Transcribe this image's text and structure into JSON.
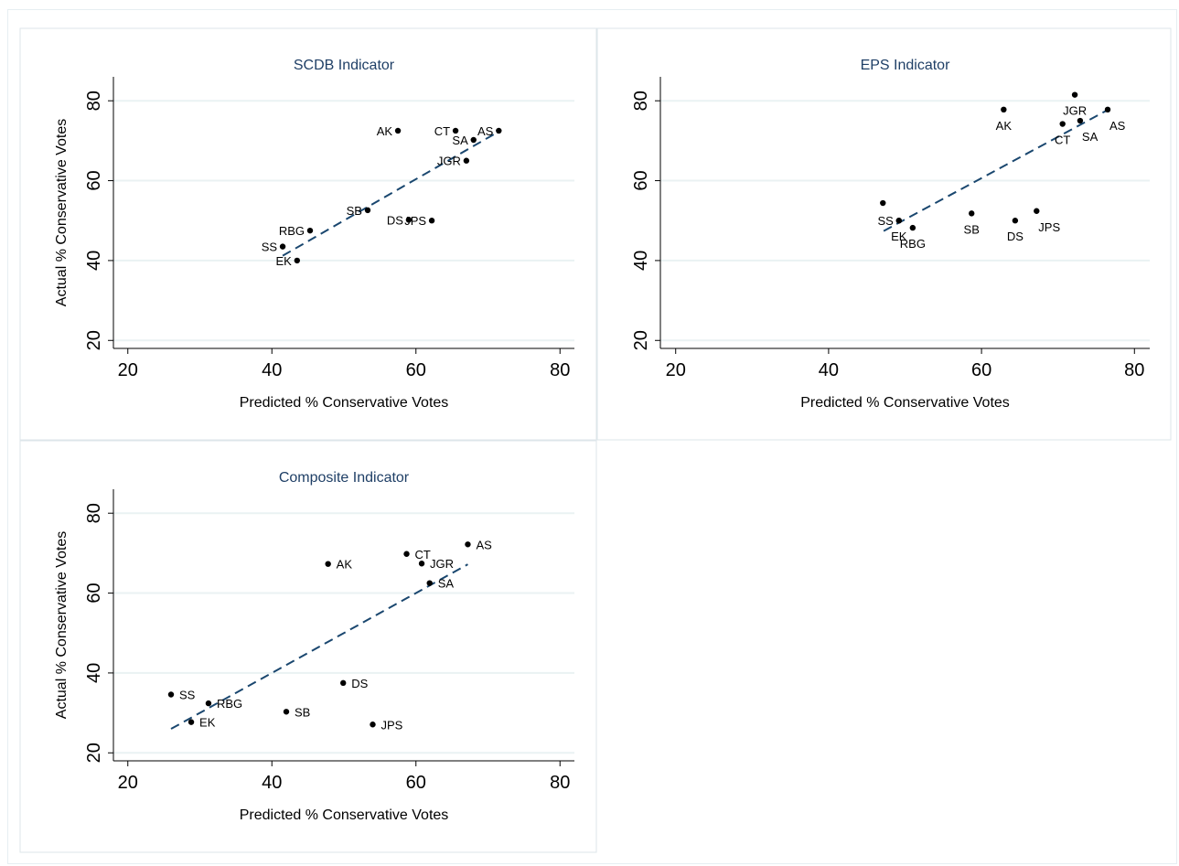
{
  "colors": {
    "background": "#ffffff",
    "panel_border": "#dde6ea",
    "title": "#1f3f66",
    "grid": "#eaf2f3",
    "point": "#000000",
    "fit_line": "#1a476f"
  },
  "chart_data": [
    {
      "type": "scatter",
      "title": "SCDB Indicator",
      "xlabel": "Predicted % Conservative Votes",
      "ylabel": "Actual % Conservative Votes",
      "xlim": [
        18,
        82
      ],
      "ylim": [
        18,
        86
      ],
      "xticks": [
        20,
        40,
        60,
        80
      ],
      "yticks": [
        20,
        40,
        60,
        80
      ],
      "grid": "horizontal",
      "points": [
        {
          "label": "AK",
          "x": 57.5,
          "y": 72.5,
          "pos": "left"
        },
        {
          "label": "CT",
          "x": 65.5,
          "y": 72.5,
          "pos": "left"
        },
        {
          "label": "AS",
          "x": 71.5,
          "y": 72.5,
          "pos": "left"
        },
        {
          "label": "SA",
          "x": 68.0,
          "y": 70.2,
          "pos": "left"
        },
        {
          "label": "JGR",
          "x": 67.0,
          "y": 65.0,
          "pos": "left"
        },
        {
          "label": "SB",
          "x": 53.3,
          "y": 52.6,
          "pos": "left"
        },
        {
          "label": "DS",
          "x": 59.0,
          "y": 50.2,
          "pos": "left"
        },
        {
          "label": "JPS",
          "x": 62.2,
          "y": 50.0,
          "pos": "left"
        },
        {
          "label": "RBG",
          "x": 45.3,
          "y": 47.5,
          "pos": "left"
        },
        {
          "label": "SS",
          "x": 41.5,
          "y": 43.5,
          "pos": "left"
        },
        {
          "label": "EK",
          "x": 43.5,
          "y": 40.0,
          "pos": "left"
        }
      ],
      "fit": {
        "x": [
          41.5,
          71.5
        ],
        "y": [
          41.2,
          72.3
        ]
      }
    },
    {
      "type": "scatter",
      "title": "EPS Indicator",
      "xlabel": "Predicted % Conservative Votes",
      "ylabel": "",
      "xlim": [
        18,
        82
      ],
      "ylim": [
        18,
        86
      ],
      "xticks": [
        20,
        40,
        60,
        80
      ],
      "yticks": [
        20,
        40,
        60,
        80
      ],
      "grid": "horizontal",
      "points": [
        {
          "label": "AK",
          "x": 62.9,
          "y": 77.8,
          "pos": "below"
        },
        {
          "label": "JGR",
          "x": 72.2,
          "y": 81.5,
          "pos": "below"
        },
        {
          "label": "AS",
          "x": 76.5,
          "y": 77.8,
          "pos": "belowright"
        },
        {
          "label": "CT",
          "x": 70.6,
          "y": 74.2,
          "pos": "below"
        },
        {
          "label": "SA",
          "x": 72.9,
          "y": 75.0,
          "pos": "belowright"
        },
        {
          "label": "SS",
          "x": 49.2,
          "y": 50.0,
          "pos": "left"
        },
        {
          "label": "",
          "x": 47.1,
          "y": 54.4,
          "pos": "none"
        },
        {
          "label": "EK",
          "x": 49.2,
          "y": 50.0,
          "pos": "belowfar"
        },
        {
          "label": "RBG",
          "x": 51.0,
          "y": 48.2,
          "pos": "below"
        },
        {
          "label": "SB",
          "x": 58.7,
          "y": 51.8,
          "pos": "below"
        },
        {
          "label": "DS",
          "x": 64.4,
          "y": 50.0,
          "pos": "below"
        },
        {
          "label": "JPS",
          "x": 67.2,
          "y": 52.4,
          "pos": "belowright"
        }
      ],
      "fit": {
        "x": [
          47.2,
          76.6
        ],
        "y": [
          47.4,
          77.8
        ]
      }
    },
    {
      "type": "scatter",
      "title": "Composite Indicator",
      "xlabel": "Predicted % Conservative Votes",
      "ylabel": "Actual % Conservative Votes",
      "xlim": [
        18,
        82
      ],
      "ylim": [
        18,
        86
      ],
      "xticks": [
        20,
        40,
        60,
        80
      ],
      "yticks": [
        20,
        40,
        60,
        80
      ],
      "grid": "horizontal",
      "points": [
        {
          "label": "AK",
          "x": 47.8,
          "y": 67.3,
          "pos": "right"
        },
        {
          "label": "CT",
          "x": 58.7,
          "y": 69.8,
          "pos": "right"
        },
        {
          "label": "AS",
          "x": 67.2,
          "y": 72.2,
          "pos": "right"
        },
        {
          "label": "JGR",
          "x": 60.8,
          "y": 67.4,
          "pos": "right"
        },
        {
          "label": "SA",
          "x": 61.9,
          "y": 62.5,
          "pos": "right"
        },
        {
          "label": "DS",
          "x": 49.9,
          "y": 37.5,
          "pos": "right"
        },
        {
          "label": "SS",
          "x": 26.0,
          "y": 34.6,
          "pos": "right"
        },
        {
          "label": "RBG",
          "x": 31.2,
          "y": 32.4,
          "pos": "right"
        },
        {
          "label": "SB",
          "x": 42.0,
          "y": 30.3,
          "pos": "right"
        },
        {
          "label": "EK",
          "x": 28.8,
          "y": 27.7,
          "pos": "right"
        },
        {
          "label": "JPS",
          "x": 54.0,
          "y": 27.1,
          "pos": "right"
        }
      ],
      "fit": {
        "x": [
          26.0,
          67.2
        ],
        "y": [
          26.0,
          67.2
        ]
      }
    }
  ]
}
